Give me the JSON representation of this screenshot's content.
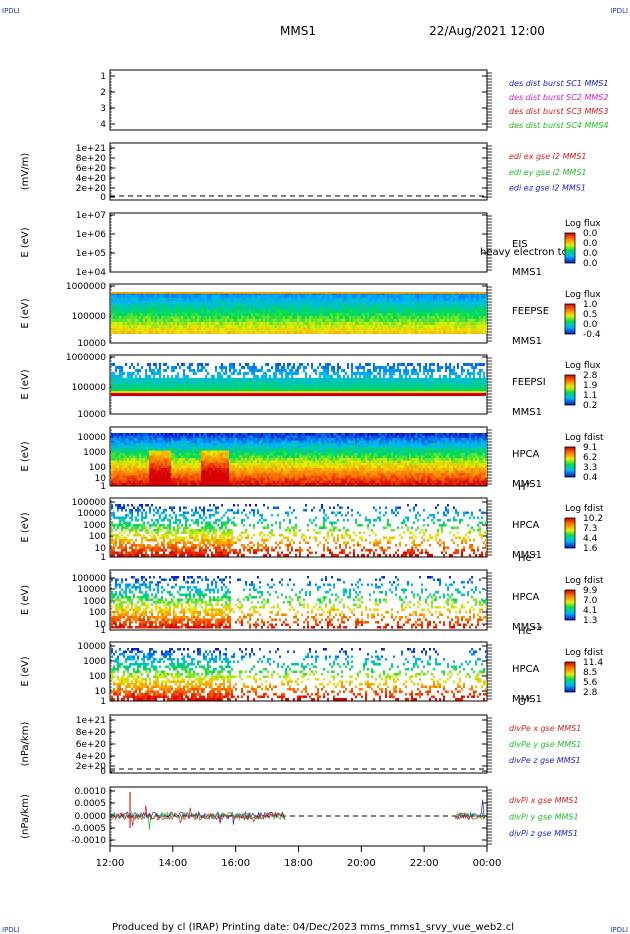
{
  "header": {
    "corner_left": "IPDLI",
    "corner_right": "IPDLI",
    "title": "MMS1",
    "datetime": "22/Aug/2021 12:00"
  },
  "footer": {
    "corner_left": "IPDLI",
    "corner_right": "IPDLI",
    "credit": "Produced by cl (IRAP)   Printing date: 04/Dec/2023   mms_mms1_srvy_vue_web2.cl"
  },
  "x_axis": {
    "ticks": [
      "12:00",
      "14:00",
      "16:00",
      "18:00",
      "20:00",
      "22:00",
      "00:00"
    ]
  },
  "chart_data": [
    {
      "id": "des-dist",
      "type": "line",
      "ylabel": "",
      "ylim": [
        0.5,
        4.5
      ],
      "yticks": [
        "1",
        "2",
        "3",
        "4"
      ],
      "legend": [
        {
          "text": "des dist burst SC1 MMS1",
          "color": "#2222cc"
        },
        {
          "text": "des dist burst SC2 MMS2",
          "color": "#cc22cc"
        },
        {
          "text": "des dist burst SC3 MMS3",
          "color": "#cc2222"
        },
        {
          "text": "des dist burst SC4 MMS4",
          "color": "#22bb22"
        }
      ]
    },
    {
      "id": "edi",
      "type": "line",
      "ylabel": "(mV/m)",
      "ylim": [
        -1e+20,
        1.1e+21
      ],
      "yticks": [
        "1e+21",
        "8e+20",
        "6e+20",
        "4e+20",
        "2e+20",
        "0"
      ],
      "legend": [
        {
          "text": "edi ex gse l2 MMS1",
          "color": "#cc2222"
        },
        {
          "text": "edi ey gse l2 MMS1",
          "color": "#22bb22"
        },
        {
          "text": "edi ez gse l2 MMS1",
          "color": "#2222cc"
        }
      ]
    },
    {
      "id": "eis",
      "type": "heatmap",
      "ylabel": "E (eV)",
      "yticks": [
        "1e+07",
        "1e+06",
        "1e+05",
        "1e+04"
      ],
      "instrument": "EIS",
      "spacecraft": "MMS1",
      "overlay": "heavy electron to",
      "cbar_title": "Log flux",
      "cbar_ticks": [
        "0.0",
        "0.0",
        "0.0",
        "0.0"
      ]
    },
    {
      "id": "feepse",
      "type": "heatmap",
      "ylabel": "E (eV)",
      "yticks": [
        "1000000",
        "100000",
        "10000"
      ],
      "instrument": "FEEPSE",
      "spacecraft": "MMS1",
      "cbar_title": "Log flux",
      "cbar_ticks": [
        "1.0",
        "0.5",
        "0.0",
        "-0.4"
      ]
    },
    {
      "id": "feepsi",
      "type": "heatmap",
      "ylabel": "E (eV)",
      "yticks": [
        "1000000",
        "100000",
        "10000"
      ],
      "instrument": "FEEPSI",
      "spacecraft": "MMS1",
      "cbar_title": "Log flux",
      "cbar_ticks": [
        "2.8",
        "1.9",
        "1.1",
        "0.2"
      ]
    },
    {
      "id": "hpca-h",
      "type": "heatmap",
      "ylabel": "E (eV)",
      "yticks": [
        "10000",
        "1000",
        "100",
        "10",
        "1"
      ],
      "instrument": "HPCA",
      "spacecraft": "MMS1",
      "species": "H",
      "species_sup": "+",
      "cbar_title": "Log fdist",
      "cbar_ticks": [
        "9.1",
        "6.2",
        "3.3",
        "0.4"
      ]
    },
    {
      "id": "hpca-he",
      "type": "heatmap",
      "ylabel": "E (eV)",
      "yticks": [
        "100000",
        "10000",
        "1000",
        "100",
        "10",
        "1"
      ],
      "instrument": "HPCA",
      "spacecraft": "MMS1",
      "species": "He",
      "species_sup": "+",
      "cbar_title": "Log fdist",
      "cbar_ticks": [
        "10.2",
        "7.3",
        "4.4",
        "1.6"
      ]
    },
    {
      "id": "hpca-hepp",
      "type": "heatmap",
      "ylabel": "E (eV)",
      "yticks": [
        "100000",
        "10000",
        "1000",
        "100",
        "10",
        "1"
      ],
      "instrument": "HPCA",
      "spacecraft": "MMS1",
      "species": "He",
      "species_sup": "++",
      "cbar_title": "Log fdist",
      "cbar_ticks": [
        "9.9",
        "7.0",
        "4.1",
        "1.3"
      ]
    },
    {
      "id": "hpca-o",
      "type": "heatmap",
      "ylabel": "E (eV)",
      "yticks": [
        "10000",
        "1000",
        "100",
        "10",
        "1"
      ],
      "instrument": "HPCA",
      "spacecraft": "MMS1",
      "species": "O",
      "species_sup": "+",
      "cbar_title": "Log fdist",
      "cbar_ticks": [
        "11.4",
        "8.5",
        "5.6",
        "2.8"
      ]
    },
    {
      "id": "divpe",
      "type": "line",
      "ylabel": "(nPa/km)",
      "ylim": [
        -1e+20,
        1.1e+21
      ],
      "yticks": [
        "1e+21",
        "8e+20",
        "6e+20",
        "4e+20",
        "2e+20",
        "0"
      ],
      "legend": [
        {
          "text": "divPe x gse MMS1",
          "color": "#cc2222"
        },
        {
          "text": "divPe y gse MMS1",
          "color": "#22bb22"
        },
        {
          "text": "divPe z gse MMS1",
          "color": "#2222cc"
        }
      ]
    },
    {
      "id": "divpi",
      "type": "line",
      "ylabel": "(nPa/km)",
      "ylim": [
        -0.0012,
        0.0012
      ],
      "yticks": [
        "0.0010",
        "0.0005",
        "0.0000",
        "-0.0005",
        "-0.0010"
      ],
      "legend": [
        {
          "text": "divPi x gse MMS1",
          "color": "#cc2222"
        },
        {
          "text": "divPi y gse MMS1",
          "color": "#22bb22"
        },
        {
          "text": "divPi z gse MMS1",
          "color": "#2222cc"
        }
      ]
    }
  ]
}
